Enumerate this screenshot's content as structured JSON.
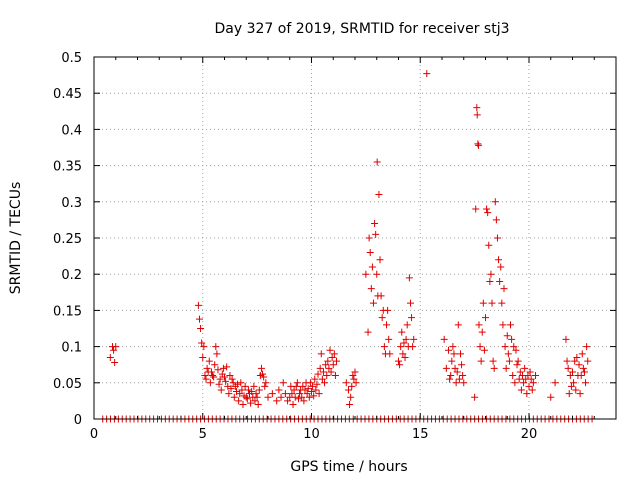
{
  "chart_data": {
    "type": "scatter",
    "title": "Day 327 of 2019, SRMTID for receiver stj3",
    "xlabel": "GPS time / hours",
    "ylabel": "SRMTID / TECUs",
    "xlim": [
      0,
      24
    ],
    "ylim": [
      0,
      0.5
    ],
    "xticks": [
      0,
      5,
      10,
      15,
      20
    ],
    "yticks": [
      0,
      0.05,
      0.1,
      0.15,
      0.2,
      0.25,
      0.3,
      0.35,
      0.4,
      0.45,
      0.5
    ],
    "xtick_labels": [
      "0",
      "5",
      "10",
      "15",
      "20"
    ],
    "ytick_labels": [
      "0",
      "0.05",
      "0.1",
      "0.15",
      "0.2",
      "0.25",
      "0.3",
      "0.35",
      "0.4",
      "0.45",
      "0.5"
    ],
    "grid": true,
    "marker": "+",
    "color": "#e00000",
    "series": [
      {
        "name": "SRMTID",
        "points": [
          [
            0.75,
            0.085
          ],
          [
            0.85,
            0.1
          ],
          [
            0.9,
            0.095
          ],
          [
            0.95,
            0.078
          ],
          [
            1.0,
            0.1
          ],
          [
            4.8,
            0.157
          ],
          [
            4.85,
            0.138
          ],
          [
            4.9,
            0.125
          ],
          [
            4.95,
            0.105
          ],
          [
            5.0,
            0.085
          ],
          [
            5.05,
            0.1
          ],
          [
            5.1,
            0.06
          ],
          [
            5.15,
            0.055
          ],
          [
            5.2,
            0.07
          ],
          [
            5.25,
            0.065
          ],
          [
            5.3,
            0.08
          ],
          [
            5.35,
            0.05
          ],
          [
            5.4,
            0.065
          ],
          [
            5.45,
            0.06
          ],
          [
            5.5,
            0.058
          ],
          [
            5.55,
            0.075
          ],
          [
            5.6,
            0.1
          ],
          [
            5.65,
            0.09
          ],
          [
            5.7,
            0.068
          ],
          [
            5.75,
            0.048
          ],
          [
            5.8,
            0.055
          ],
          [
            5.85,
            0.04
          ],
          [
            5.9,
            0.062
          ],
          [
            5.95,
            0.07
          ],
          [
            6.0,
            0.058
          ],
          [
            6.05,
            0.052
          ],
          [
            6.1,
            0.072
          ],
          [
            6.15,
            0.045
          ],
          [
            6.2,
            0.035
          ],
          [
            6.25,
            0.06
          ],
          [
            6.3,
            0.042
          ],
          [
            6.35,
            0.055
          ],
          [
            6.4,
            0.05
          ],
          [
            6.45,
            0.03
          ],
          [
            6.5,
            0.045
          ],
          [
            6.55,
            0.038
          ],
          [
            6.6,
            0.048
          ],
          [
            6.65,
            0.025
          ],
          [
            6.7,
            0.035
          ],
          [
            6.75,
            0.05
          ],
          [
            6.8,
            0.04
          ],
          [
            6.85,
            0.02
          ],
          [
            6.9,
            0.032
          ],
          [
            6.95,
            0.045
          ],
          [
            7.0,
            0.03
          ],
          [
            7.05,
            0.028
          ],
          [
            7.1,
            0.04
          ],
          [
            7.15,
            0.035
          ],
          [
            7.2,
            0.022
          ],
          [
            7.25,
            0.038
          ],
          [
            7.3,
            0.03
          ],
          [
            7.35,
            0.045
          ],
          [
            7.4,
            0.025
          ],
          [
            7.45,
            0.035
          ],
          [
            7.5,
            0.03
          ],
          [
            7.55,
            0.02
          ],
          [
            7.6,
            0.04
          ],
          [
            7.65,
            0.06
          ],
          [
            7.7,
            0.07
          ],
          [
            7.75,
            0.062
          ],
          [
            7.8,
            0.058
          ],
          [
            7.85,
            0.045
          ],
          [
            7.9,
            0.05
          ],
          [
            8.0,
            0.03
          ],
          [
            8.2,
            0.035
          ],
          [
            8.4,
            0.025
          ],
          [
            8.5,
            0.04
          ],
          [
            8.6,
            0.03
          ],
          [
            8.7,
            0.05
          ],
          [
            8.8,
            0.035
          ],
          [
            8.9,
            0.025
          ],
          [
            9.0,
            0.03
          ],
          [
            9.05,
            0.045
          ],
          [
            9.1,
            0.035
          ],
          [
            9.15,
            0.02
          ],
          [
            9.2,
            0.04
          ],
          [
            9.25,
            0.03
          ],
          [
            9.3,
            0.045
          ],
          [
            9.35,
            0.05
          ],
          [
            9.4,
            0.028
          ],
          [
            9.45,
            0.035
          ],
          [
            9.5,
            0.04
          ],
          [
            9.55,
            0.03
          ],
          [
            9.6,
            0.045
          ],
          [
            9.65,
            0.025
          ],
          [
            9.7,
            0.04
          ],
          [
            9.75,
            0.05
          ],
          [
            9.8,
            0.035
          ],
          [
            9.85,
            0.042
          ],
          [
            9.9,
            0.03
          ],
          [
            9.95,
            0.05
          ],
          [
            10.0,
            0.038
          ],
          [
            10.05,
            0.045
          ],
          [
            10.1,
            0.032
          ],
          [
            10.15,
            0.055
          ],
          [
            10.2,
            0.04
          ],
          [
            10.25,
            0.048
          ],
          [
            10.3,
            0.062
          ],
          [
            10.35,
            0.035
          ],
          [
            10.4,
            0.07
          ],
          [
            10.45,
            0.09
          ],
          [
            10.5,
            0.055
          ],
          [
            10.55,
            0.065
          ],
          [
            10.6,
            0.05
          ],
          [
            10.65,
            0.075
          ],
          [
            10.7,
            0.06
          ],
          [
            10.75,
            0.08
          ],
          [
            10.8,
            0.07
          ],
          [
            10.85,
            0.095
          ],
          [
            10.9,
            0.065
          ],
          [
            10.95,
            0.085
          ],
          [
            11.0,
            0.075
          ],
          [
            11.05,
            0.09
          ],
          [
            11.1,
            0.06
          ],
          [
            11.15,
            0.08
          ],
          [
            11.6,
            0.05
          ],
          [
            11.7,
            0.04
          ],
          [
            11.75,
            0.02
          ],
          [
            11.8,
            0.03
          ],
          [
            11.85,
            0.045
          ],
          [
            11.9,
            0.06
          ],
          [
            11.95,
            0.055
          ],
          [
            12.0,
            0.065
          ],
          [
            12.05,
            0.05
          ],
          [
            12.5,
            0.2
          ],
          [
            12.6,
            0.12
          ],
          [
            12.65,
            0.25
          ],
          [
            12.7,
            0.23
          ],
          [
            12.75,
            0.18
          ],
          [
            12.8,
            0.21
          ],
          [
            12.85,
            0.16
          ],
          [
            12.9,
            0.27
          ],
          [
            12.95,
            0.255
          ],
          [
            13.0,
            0.2
          ],
          [
            13.02,
            0.355
          ],
          [
            13.05,
            0.17
          ],
          [
            13.1,
            0.31
          ],
          [
            13.15,
            0.22
          ],
          [
            13.2,
            0.17
          ],
          [
            13.25,
            0.14
          ],
          [
            13.3,
            0.15
          ],
          [
            13.35,
            0.1
          ],
          [
            13.4,
            0.09
          ],
          [
            13.45,
            0.13
          ],
          [
            13.5,
            0.15
          ],
          [
            13.55,
            0.11
          ],
          [
            13.6,
            0.09
          ],
          [
            14.0,
            0.08
          ],
          [
            14.05,
            0.075
          ],
          [
            14.1,
            0.1
          ],
          [
            14.15,
            0.12
          ],
          [
            14.2,
            0.09
          ],
          [
            14.25,
            0.105
          ],
          [
            14.3,
            0.085
          ],
          [
            14.35,
            0.11
          ],
          [
            14.4,
            0.13
          ],
          [
            14.45,
            0.1
          ],
          [
            14.5,
            0.195
          ],
          [
            14.55,
            0.16
          ],
          [
            14.6,
            0.14
          ],
          [
            14.65,
            0.1
          ],
          [
            14.7,
            0.11
          ],
          [
            15.3,
            0.477
          ],
          [
            16.1,
            0.11
          ],
          [
            16.2,
            0.07
          ],
          [
            16.3,
            0.095
          ],
          [
            16.35,
            0.055
          ],
          [
            16.4,
            0.06
          ],
          [
            16.45,
            0.08
          ],
          [
            16.5,
            0.1
          ],
          [
            16.55,
            0.09
          ],
          [
            16.6,
            0.07
          ],
          [
            16.65,
            0.05
          ],
          [
            16.7,
            0.065
          ],
          [
            16.75,
            0.13
          ],
          [
            16.8,
            0.055
          ],
          [
            16.85,
            0.09
          ],
          [
            16.9,
            0.075
          ],
          [
            16.95,
            0.06
          ],
          [
            17.0,
            0.05
          ],
          [
            17.5,
            0.03
          ],
          [
            17.55,
            0.29
          ],
          [
            17.6,
            0.43
          ],
          [
            17.62,
            0.42
          ],
          [
            17.65,
            0.38
          ],
          [
            17.68,
            0.378
          ],
          [
            17.7,
            0.13
          ],
          [
            17.75,
            0.1
          ],
          [
            17.8,
            0.08
          ],
          [
            17.85,
            0.12
          ],
          [
            17.9,
            0.16
          ],
          [
            17.95,
            0.095
          ],
          [
            18.0,
            0.14
          ],
          [
            18.05,
            0.29
          ],
          [
            18.1,
            0.285
          ],
          [
            18.15,
            0.24
          ],
          [
            18.2,
            0.19
          ],
          [
            18.25,
            0.2
          ],
          [
            18.3,
            0.16
          ],
          [
            18.35,
            0.08
          ],
          [
            18.4,
            0.07
          ],
          [
            18.45,
            0.3
          ],
          [
            18.5,
            0.275
          ],
          [
            18.55,
            0.25
          ],
          [
            18.6,
            0.22
          ],
          [
            18.65,
            0.19
          ],
          [
            18.7,
            0.21
          ],
          [
            18.75,
            0.16
          ],
          [
            18.8,
            0.13
          ],
          [
            18.85,
            0.18
          ],
          [
            18.9,
            0.1
          ],
          [
            18.95,
            0.07
          ],
          [
            19.0,
            0.115
          ],
          [
            19.05,
            0.09
          ],
          [
            19.1,
            0.08
          ],
          [
            19.15,
            0.13
          ],
          [
            19.2,
            0.11
          ],
          [
            19.25,
            0.06
          ],
          [
            19.3,
            0.1
          ],
          [
            19.35,
            0.05
          ],
          [
            19.4,
            0.095
          ],
          [
            19.45,
            0.075
          ],
          [
            19.5,
            0.08
          ],
          [
            19.55,
            0.055
          ],
          [
            19.6,
            0.065
          ],
          [
            19.65,
            0.04
          ],
          [
            19.7,
            0.06
          ],
          [
            19.75,
            0.05
          ],
          [
            19.8,
            0.07
          ],
          [
            19.85,
            0.055
          ],
          [
            19.9,
            0.035
          ],
          [
            19.95,
            0.06
          ],
          [
            20.0,
            0.045
          ],
          [
            20.05,
            0.065
          ],
          [
            20.1,
            0.055
          ],
          [
            20.15,
            0.04
          ],
          [
            20.2,
            0.05
          ],
          [
            20.3,
            0.06
          ],
          [
            21.0,
            0.03
          ],
          [
            21.2,
            0.05
          ],
          [
            21.7,
            0.11
          ],
          [
            21.75,
            0.08
          ],
          [
            21.8,
            0.07
          ],
          [
            21.85,
            0.035
          ],
          [
            21.9,
            0.06
          ],
          [
            21.95,
            0.045
          ],
          [
            22.0,
            0.065
          ],
          [
            22.05,
            0.05
          ],
          [
            22.1,
            0.08
          ],
          [
            22.15,
            0.04
          ],
          [
            22.2,
            0.085
          ],
          [
            22.25,
            0.06
          ],
          [
            22.3,
            0.075
          ],
          [
            22.35,
            0.035
          ],
          [
            22.4,
            0.06
          ],
          [
            22.45,
            0.09
          ],
          [
            22.5,
            0.07
          ],
          [
            22.55,
            0.065
          ],
          [
            22.6,
            0.05
          ],
          [
            22.65,
            0.1
          ],
          [
            22.7,
            0.08
          ]
        ]
      }
    ],
    "zero_band": {
      "description": "row of points at SRMTID = 0",
      "x_start": 0.4,
      "x_end": 22.9,
      "x_step": 0.18,
      "value": 0
    }
  }
}
